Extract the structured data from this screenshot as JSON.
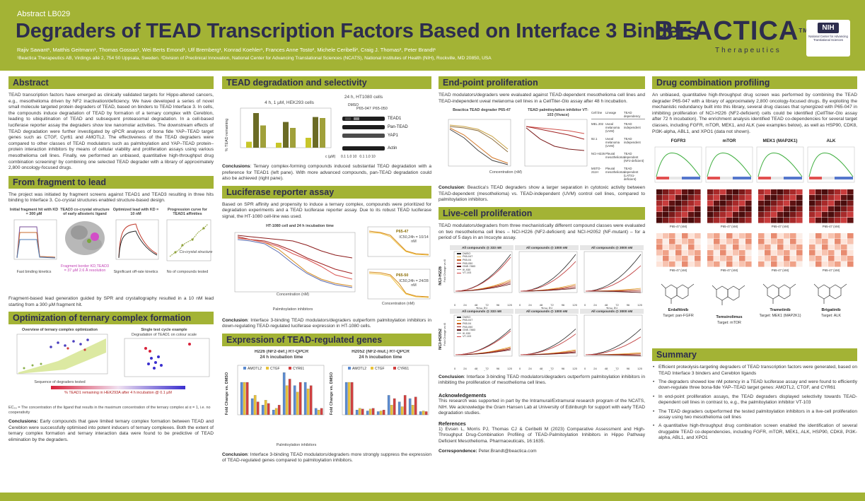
{
  "header": {
    "abstract_id": "Abstract LB029",
    "title": "Degraders of TEAD Transcription Factors Based on Interface 3 Binders",
    "authors": "Rajiv Sawant¹, Matthis Geitmann¹, Thomas Gossas¹, Wei Berts Emond¹, Ulf Bremberg¹, Konrad Koehler¹, Frances Anne Tosto², Michele Ceribelli², Craig J. Thomas², Peter Brandt¹",
    "affiliations": "¹Beactica Therapeutics AB, Virdings allé 2, 754 50 Uppsala, Sweden. ²Division of Preclinical Innovation, National Center for Advancing Translational Sciences (NCATS), National Institutes of Health (NIH), Rockville, MD 20850, USA",
    "logo_word": "BEACTICA",
    "logo_tm": "TM",
    "logo_sub": "Therapeutics",
    "nih_badge": "NIH",
    "nih_text": "National Center for Advancing Translational Sciences"
  },
  "abstract": {
    "heading": "Abstract",
    "body": "TEAD transcription factors have emerged as clinically validated targets for Hippo-altered cancers, e.g., mesothelioma driven by NF2 inactivation/deficiency. We have developed a series of novel small molecule targeted protein degraders of TEAD, based on binders to TEAD Interface 3. In cells, the compounds induce degradation of TEAD by formation of a ternary complex with Cereblon, leading to ubiquitination of TEAD and subsequent proteasomal degradation. In a cell-based luciferase reporter assay the degraders show low nanomolar activities. The downstream effects of TEAD degradation were further investigated by qPCR analyses of bona fide YAP–TEAD target genes such as CTGF, Cyr61 and AMOTL2. The effectiveness of the TEAD degraders were compared to other classes of TEAD modulators such as palmitoylation and YAP–TEAD protein–protein interaction inhibitors by means of cellular viability and proliferation assays using various mesothelioma cell lines. Finally, we performed an unbiased, quantitative high-throughput drug combination screening¹ by combining one selected TEAD degrader with a library of approximately 2,800 oncology-focused drugs."
  },
  "fragment": {
    "heading": "From fragment to lead",
    "intro": "The project was initiated by fragment screens against TEAD1 and TEAD3 resulting in three hits binding to Interface 3. Co-crystal structures enabled structure-based design.",
    "panel1_title": "Initial fragment hit with KD = 300 µM",
    "panel1_caption": "Fast binding kinetics",
    "panel2_title": "TEAD3 co-crystal structure of early allosteric ligand",
    "panel2_caption": "Fragment border KD,TEAD3 = 37 µM 2.6 Å resolution",
    "panel3_title": "Optimized lead with KD = 10 nM",
    "panel3_caption": "Significant off-rate kinetics",
    "panel4_title": "Progression curve for TEAD1 affinities",
    "panel4_legend": "Co-crystal structure",
    "panel4_xlabel": "No of compounds tested",
    "conclusion": "Fragment-based lead generation guided by SPR and crystallography resulted in a 10 nM lead starting from a 300 µM fragment hit."
  },
  "ternary": {
    "heading": "Optimization of ternary complex formation",
    "panel1_title": "Overview of ternary complex optimization",
    "panel1_xlabel": "Sequence of degraders tested",
    "panel2_title": "Single test cycle example",
    "panel2_subtitle": "Degradation of TEAD1 on colour scale",
    "scale_label": "% TEAD1 remaining in HEK293A after 4 h incubation @ 0.1 µM",
    "ec_note": "EC₅₀ = The concentration of the ligand that results in the maximum concentration of the ternary complex at α = 1, i.e. no cooperativity",
    "conclusion_label": "Conclusions:",
    "conclusion": "Early compounds that gave limited ternary complex formation between TEAD and Cereblon were successfully optimised into potent inducers of ternary complexes. Both the extent of ternary complex formation and ternary interaction data were found to be predictive of TEAD elimination by the degraders."
  },
  "degradation": {
    "heading": "TEAD degradation and selectivity",
    "bar_title": "4 h, 1 µM, HEK293 cells",
    "bar_ylabel": "% TEAD remaining",
    "blot_title": "24 h, HT1080 cells",
    "blot_cols": [
      "DMSO",
      "P65-047",
      "P65-050"
    ],
    "blot_rows": [
      "TEAD1",
      "Pan-TEAD",
      "YAP1",
      "Actin"
    ],
    "blot_xlabel": "c (µM)",
    "blot_ticks": "0.1 1.0 10   0.1 1.0 10",
    "conclusion_label": "Conclusions",
    "conclusion": "Ternary complex-forming compounds induced substantial TEAD degradation with a preference for TEAD1 (left pane). With more advanced compounds, pan-TEAD degradation could also be achieved (right pane)."
  },
  "luciferase": {
    "heading": "Luciferase reporter assay",
    "intro": "Based on SPR affinity and propensity to induce a ternary complex, compounds were prioritized for degradation experiments and a TEAD luciferase reporter assay. Due to its robust TEAD luciferase signal, the HT-1080 cell-line was used.",
    "main_title": "HT-1080 cell and 24 h incubation time",
    "main_ylabel": "Luciferase activity (%)",
    "main_xlabel": "Concentration (nM)",
    "palm_label": "Palmitoylation inhibitors",
    "p47_title": "P65-47",
    "p47_ic50": "IC50,24h = 10/14 nM",
    "p50_title": "P65-50",
    "p50_ic50": "IC50,24h = 24/28 nM",
    "small_xlabel": "Concentration (nM)",
    "small_legend_24": "24h",
    "small_legend_48": "48h",
    "conclusion_label": "Conclusion",
    "conclusion": "Interface 3-binding TEAD modulators/degraders outperform palmitoylation inhibitors in down-regulating TEAD-regulated luciferase expression in HT-1080 cells."
  },
  "tead_genes": {
    "heading": "Expression of TEAD-regulated genes",
    "left_title": "H226 (NF2-def.) RT-QPCR",
    "left_subtitle": "24 h incubation time",
    "right_title": "H2052 (NF2-mut.) RT-QPCR",
    "right_subtitle": "24 h incubation time",
    "ylabel": "Fold Change vs. DMSO",
    "legend": [
      "AMOTL2",
      "CTGF",
      "CYR61"
    ],
    "palm_label": "Palmitoylation inhibitors",
    "conclusion_label": "Conclusion",
    "conclusion": "Interface 3-binding TEAD modulators/degraders more strongly suppress the expression of TEAD-regulated genes compared to palmitoylation inhibitors."
  },
  "endpoint": {
    "heading": "End-point proliferation",
    "intro": "TEAD modulators/degraders were evaluated against TEAD-dependent mesothelioma cell lines and TEAD-independent uveal melanoma cell lines in a CellTiter-Glo assay after 48 h incubation.",
    "plot1_title": "Beactica TEAD degrader P65-47",
    "plot2_title": "TEAD palmitoylation inhibitor VT-103 (Vivace)",
    "ylabel": "Relative viability (%)",
    "xlabel": "Concentration (nM)",
    "table_headers": [
      "Cell line",
      "Lineage",
      "TEAD dependency"
    ],
    "table_rows": [
      [
        "MEL 202",
        "Uveal melanoma (UVM)",
        "TEAD independent"
      ],
      [
        "92.1",
        "Uveal melanoma (UVM)",
        "TEAD independent"
      ],
      [
        "NCI-H226",
        "Pleural mesothelioma",
        "TEAD dependent (NF2-deficient)"
      ],
      [
        "MSTO-211H",
        "Pleural mesothelioma",
        "TEAD dependent (LATS1-deficient)"
      ]
    ],
    "conclusion_label": "Conclusion",
    "conclusion": "Beactica's TEAD degraders show a larger separation in cytotoxic activity between TEAD-dependent (mesothelioma) vs. TEAD-independent (UVM) control cell lines, compared to palmitoylation inhibitors."
  },
  "livecell": {
    "heading": "Live-cell proliferation",
    "intro": "TEAD modulators/degraders from three mechanistically different compound classes were evaluated on two mesothelioma cell lines – NCI-H226 (NF2-deficient) and NCI-H2052 (NF-mutant) – for a period of 5 days in an Incucyte assay.",
    "col_titles": [
      "All compounds @ 333 nM",
      "All compounds @ 1000 nM",
      "All compounds @ 3000 nM"
    ],
    "row_labels": [
      "NCI-H226",
      "NCI-H2052"
    ],
    "ylabel": "Fold Change vs t0",
    "xlabel": "Time (h)",
    "xticks": [
      "0",
      "24",
      "48",
      "72",
      "96",
      "120"
    ],
    "legend": [
      "DMSO",
      "P65-047",
      "P65-04",
      "P65-050",
      "GNE-7883",
      "IK-930",
      "VT-103"
    ],
    "conclusion_label": "Conclusion",
    "conclusion": "Interface 3-binding TEAD modulators/degraders outperform palmitoylation inhibitors in inhibiting the proliferation of mesothelioma cell lines."
  },
  "acknowledgements": {
    "heading": "Acknowledgements",
    "body": "This research was supported in part by the Intramural/Extramural research program of the NCATS, NIH. We acknowledge the Gram Hansen Lab at University of Edinburgh for support with early TEAD degradation studies.",
    "ref_heading": "References",
    "ref_body": "1) Evsen L, Morris PJ, Thomas CJ & Ceribelli M (2023) Comparative Assessment and High-Throughput Drug-Combination Profiling of TEAD-Palmitoylation Inhibitors in Hippo Pathway Deficient Mesothelioma. Pharmaceuticals, 16:1635.",
    "corr_label": "Correspondence:",
    "corr_email": "Peter.Brandt@beactica.com"
  },
  "drugcombo": {
    "heading": "Drug combination profiling",
    "body": "An unbiased, quantitative high-throughput drug screen was performed by combining the TEAD degrader P65-047 with a library of approximately 2,800 oncology-focused drugs. By exploiting the mechanistic redundancy built into this library, several drug classes that synergized with P65-047 in inhibiting proliferation of NCI-H226 (NF2-deficient) cells could be identified (CellTiter-Glo assay after 72 h incubation). The enrichment analysis identified TEAD co-dependencies for several target classes, including FGFR, mTOR, MEK1, and ALK (see examples below), as well as HSP90, CDK8, PI3K-alpha, ABL1, and XPO1 (data not shown).",
    "targets": [
      "FGFR3",
      "mTOR",
      "MEK1 (MAP2K1)",
      "ALK"
    ],
    "heat_xlabel": "P65-47 (nM)",
    "drugs": [
      {
        "name": "Erdafitinib",
        "target": "Target: pan-FGFR"
      },
      {
        "name": "Temsirolimus",
        "target": "Target: mTOR"
      },
      {
        "name": "Trametinib",
        "target": "Target: MEK1 (MAP2K1)"
      },
      {
        "name": "Brigatinib",
        "target": "Target: ALK"
      }
    ]
  },
  "summary": {
    "heading": "Summary",
    "bullets": [
      "Efficient proteolysis-targeting degraders of TEAD transcription factors were generated, based on TEAD Interface 3 binders and Cereblon ligands",
      "The degraders showed low nM potency in a TEAD luciferase assay and were found to efficiently down-regulate three bona-fide YAP–TEAD target genes: AMOTL2, CTGF, and CYR61",
      "In end-point proliferation assays, the TEAD degraders displayed selectivity towards TEAD-dependent cell lines in contrast to, e.g., the palmitoylation inhibitor VT-103",
      "The TEAD degraders outperformed the tested palmitoylation inhibitors in a live-cell proliferation assay using two mesothelioma cell lines",
      "A quantitative high-throughput drug combination screen enabled the identification of several druggable TEAD co-dependencies, including FGFR, mTOR, MEK1, ALK, HSP90, CDK8, PI3K-alpha, ABL1, and XPO1"
    ]
  },
  "colors": {
    "header_bg": "#a3b335",
    "navy": "#2d2d4e",
    "tead1": "#c8c62a",
    "tead4": "#6b6b25",
    "pan": "#a0a03a"
  }
}
